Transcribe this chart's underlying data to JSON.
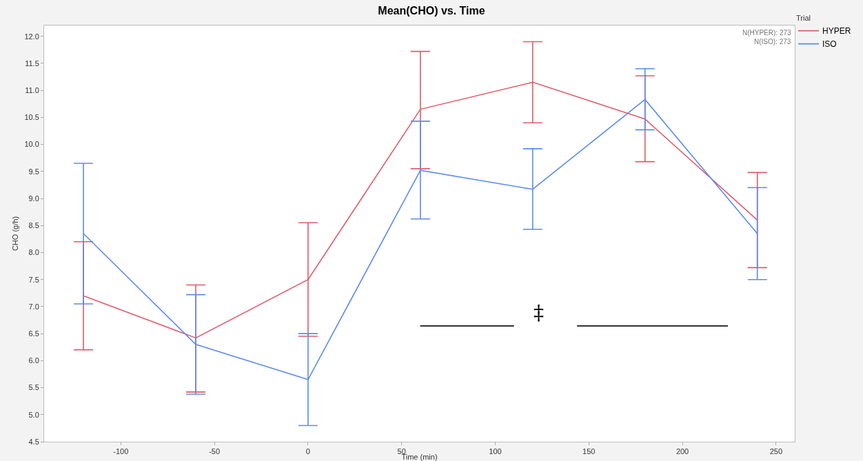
{
  "chart_data": {
    "type": "line",
    "title": "Mean(CHO) vs. Time",
    "xlabel": "Time (min)",
    "ylabel": "CHO (g/h)",
    "legend_title": "Trial",
    "x": [
      -120,
      -60,
      0,
      60,
      120,
      180,
      240
    ],
    "series": [
      {
        "name": "HYPER",
        "color": "#e05a6a",
        "values": [
          7.2,
          6.42,
          7.5,
          10.65,
          11.15,
          10.47,
          8.6
        ],
        "errors": [
          [
            6.2,
            8.2
          ],
          [
            5.42,
            7.4
          ],
          [
            6.45,
            8.55
          ],
          [
            9.55,
            11.72
          ],
          [
            10.4,
            11.9
          ],
          [
            9.68,
            11.27
          ],
          [
            7.72,
            9.48
          ]
        ]
      },
      {
        "name": "ISO",
        "color": "#5b8ce6",
        "values": [
          8.35,
          6.3,
          5.65,
          9.52,
          9.17,
          10.83,
          8.35
        ],
        "errors": [
          [
            7.05,
            9.65
          ],
          [
            5.38,
            7.22
          ],
          [
            4.8,
            6.5
          ],
          [
            8.62,
            10.43
          ],
          [
            8.43,
            9.92
          ],
          [
            10.27,
            11.4
          ],
          [
            7.5,
            9.2
          ]
        ]
      }
    ],
    "xlim": [
      -141,
      260
    ],
    "xticks": [
      -100,
      -50,
      0,
      50,
      100,
      150,
      200,
      250
    ],
    "ylim": [
      4.5,
      12.2
    ],
    "yticks": [
      {
        "value": 4.5,
        "label": "4.5"
      },
      {
        "value": 5,
        "label": "5.0"
      },
      {
        "value": 5.5,
        "label": "5.5"
      },
      {
        "value": 6,
        "label": "6.0"
      },
      {
        "value": 6.5,
        "label": "6.5"
      },
      {
        "value": 7,
        "label": "7.0"
      },
      {
        "value": 7.5,
        "label": "7.5"
      },
      {
        "value": 8,
        "label": "8.0"
      },
      {
        "value": 8.5,
        "label": "8.5"
      },
      {
        "value": 9,
        "label": "9.0"
      },
      {
        "value": 9.5,
        "label": "9.5"
      },
      {
        "value": 10,
        "label": "10.0"
      },
      {
        "value": 10.5,
        "label": "10.5"
      },
      {
        "value": 11,
        "label": "11.0"
      },
      {
        "value": 11.5,
        "label": "11.5"
      },
      {
        "value": 12,
        "label": "12.0"
      }
    ],
    "annotations": [
      "‡",
      "N(HYPER): 273",
      "N(ISO): 273"
    ],
    "grid": false,
    "legend": "top right",
    "marker": "none",
    "line_style": "solid"
  }
}
